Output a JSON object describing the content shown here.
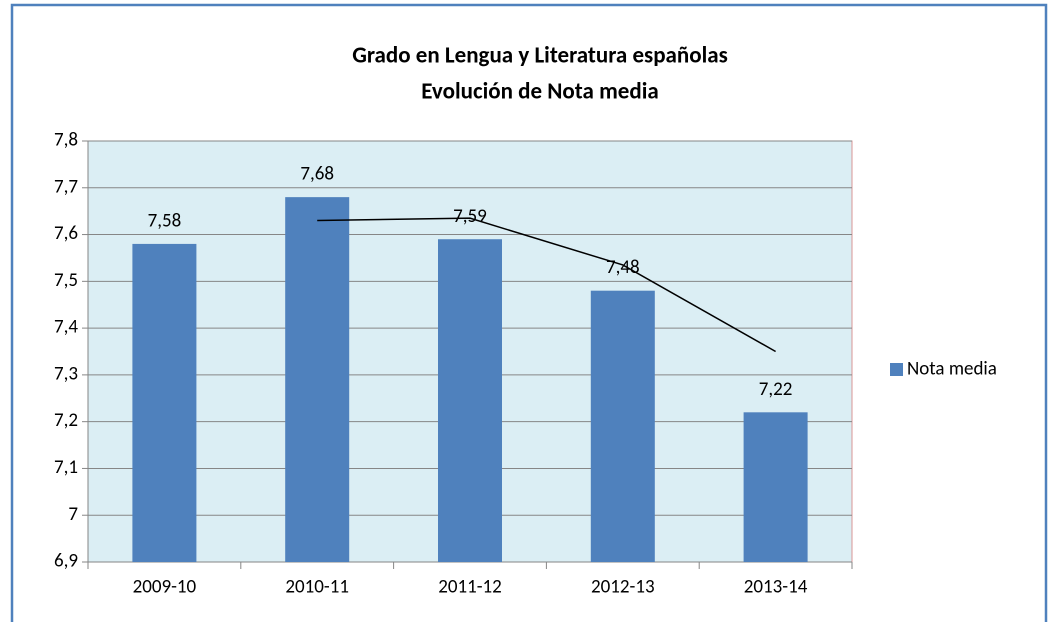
{
  "chart_data": {
    "type": "bar",
    "title": "Grado en Lengua y Literatura españolas",
    "subtitle": "Evolución de Nota media",
    "categories": [
      "2009-10",
      "2010-11",
      "2011-12",
      "2012-13",
      "2013-14"
    ],
    "series": [
      {
        "name": "Nota media",
        "color": "#4f81bd",
        "values": [
          7.58,
          7.68,
          7.59,
          7.48,
          7.22
        ],
        "value_labels": [
          "7,58",
          "7,68",
          "7,59",
          "7,48",
          "7,22"
        ]
      }
    ],
    "ylim": [
      6.9,
      7.8
    ],
    "yticks": [
      {
        "value": 6.9,
        "label": "6,9"
      },
      7,
      {
        "value": 7.1,
        "label": "7,1"
      },
      {
        "value": 7.2,
        "label": "7,2"
      },
      {
        "value": 7.3,
        "label": "7,3"
      },
      {
        "value": 7.4,
        "label": "7,4"
      },
      {
        "value": 7.5,
        "label": "7,5"
      },
      {
        "value": 7.6,
        "label": "7,6"
      },
      {
        "value": 7.7,
        "label": "7,7"
      },
      {
        "value": 7.8,
        "label": "7,8"
      }
    ],
    "grid": true,
    "legend": "right",
    "trendline": {
      "type": "moving_average",
      "period": 2,
      "color": "#000000"
    }
  }
}
